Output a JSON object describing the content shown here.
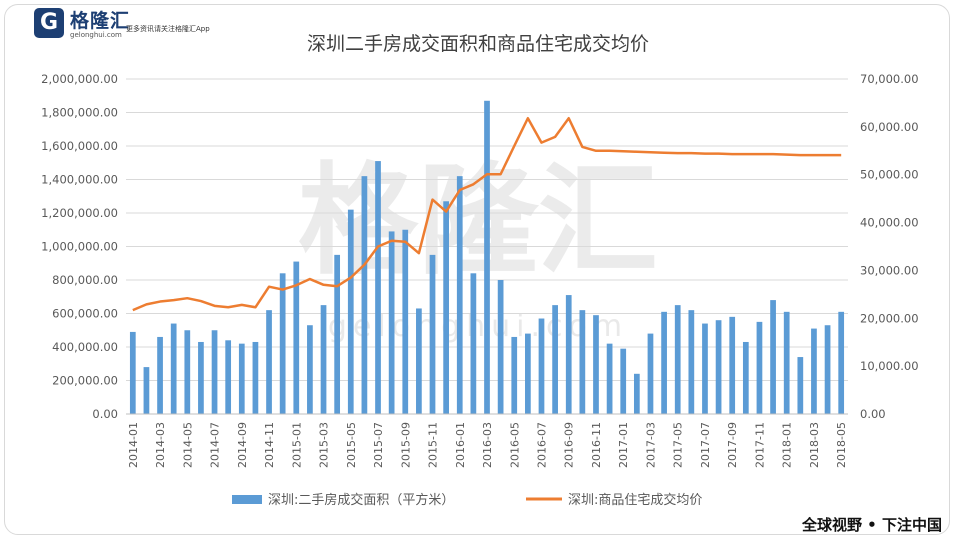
{
  "brand": {
    "logo_letter": "G",
    "logo_name": "格隆汇",
    "logo_domain": "gelonghui.com",
    "tagline": "更多资讯请关注格隆汇App",
    "watermark_cn": "格隆汇",
    "watermark_url": "gelonghui.com",
    "slogan": "全球视野 • 下注中国"
  },
  "colors": {
    "bar": "#5b9bd5",
    "line": "#ed7d31",
    "axis_text": "#595959",
    "grid": "#d9d9d9",
    "watermark": "#dadada"
  },
  "chart_data": {
    "type": "bar",
    "title": "深圳二手房成交面积和商品住宅成交均价",
    "legend_position": "bottom",
    "grid": true,
    "categories": [
      "2014-01",
      "2014-02",
      "2014-03",
      "2014-04",
      "2014-05",
      "2014-06",
      "2014-07",
      "2014-08",
      "2014-09",
      "2014-10",
      "2014-11",
      "2014-12",
      "2015-01",
      "2015-02",
      "2015-03",
      "2015-04",
      "2015-05",
      "2015-06",
      "2015-07",
      "2015-08",
      "2015-09",
      "2015-10",
      "2015-11",
      "2015-12",
      "2016-01",
      "2016-02",
      "2016-03",
      "2016-04",
      "2016-05",
      "2016-06",
      "2016-07",
      "2016-08",
      "2016-09",
      "2016-10",
      "2016-11",
      "2016-12",
      "2017-01",
      "2017-02",
      "2017-03",
      "2017-04",
      "2017-05",
      "2017-06",
      "2017-07",
      "2017-08",
      "2017-09",
      "2017-10",
      "2017-11",
      "2017-12",
      "2018-01",
      "2018-02",
      "2018-03",
      "2018-04",
      "2018-05"
    ],
    "x_tick_labels": [
      "2014-01",
      "2014-03",
      "2014-05",
      "2014-07",
      "2014-09",
      "2014-11",
      "2015-01",
      "2015-03",
      "2015-05",
      "2015-07",
      "2015-09",
      "2015-11",
      "2016-01",
      "2016-03",
      "2016-05",
      "2016-07",
      "2016-09",
      "2016-11",
      "2017-01",
      "2017-03",
      "2017-05",
      "2017-07",
      "2017-09",
      "2017-11",
      "2018-01",
      "2018-03",
      "2018-05"
    ],
    "y_left": {
      "ylim": [
        0,
        2000000
      ],
      "ticks": [
        0,
        200000,
        400000,
        600000,
        800000,
        1000000,
        1200000,
        1400000,
        1600000,
        1800000,
        2000000
      ],
      "tick_labels": [
        "0.00",
        "200,000.00",
        "400,000.00",
        "600,000.00",
        "800,000.00",
        "1,000,000.00",
        "1,200,000.00",
        "1,400,000.00",
        "1,600,000.00",
        "1,800,000.00",
        "2,000,000.00"
      ]
    },
    "y_right": {
      "ylim": [
        0,
        70000
      ],
      "ticks": [
        0,
        10000,
        20000,
        30000,
        40000,
        50000,
        60000,
        70000
      ],
      "tick_labels": [
        "0.00",
        "10,000.00",
        "20,000.00",
        "30,000.00",
        "40,000.00",
        "50,000.00",
        "60,000.00",
        "70,000.00"
      ]
    },
    "series": [
      {
        "name": "深圳:二手房成交面积（平方米）",
        "type": "bar",
        "axis": "left",
        "values": [
          490000,
          280000,
          460000,
          540000,
          500000,
          430000,
          500000,
          440000,
          420000,
          430000,
          620000,
          840000,
          910000,
          530000,
          650000,
          950000,
          1220000,
          1420000,
          1510000,
          1090000,
          1100000,
          630000,
          950000,
          1270000,
          1420000,
          840000,
          1870000,
          800000,
          460000,
          480000,
          570000,
          650000,
          710000,
          620000,
          590000,
          420000,
          390000,
          240000,
          480000,
          610000,
          650000,
          620000,
          540000,
          560000,
          580000,
          430000,
          550000,
          680000,
          610000,
          340000,
          510000,
          530000,
          610000
        ]
      },
      {
        "name": "深圳:商品住宅成交均价",
        "type": "line",
        "axis": "right",
        "values": [
          21700,
          22900,
          23500,
          23800,
          24200,
          23600,
          22600,
          22300,
          22800,
          22300,
          26600,
          26000,
          26900,
          28200,
          27000,
          26700,
          28500,
          31200,
          35000,
          36200,
          36000,
          33600,
          44800,
          42300,
          46800,
          48000,
          50100,
          50100,
          56000,
          61800,
          56700,
          57900,
          61800,
          55800,
          55000,
          55000,
          54900,
          54800,
          54700,
          54600,
          54500,
          54500,
          54400,
          54400,
          54300,
          54300,
          54300,
          54300,
          54200,
          54100,
          54100,
          54100,
          54100
        ]
      }
    ]
  }
}
